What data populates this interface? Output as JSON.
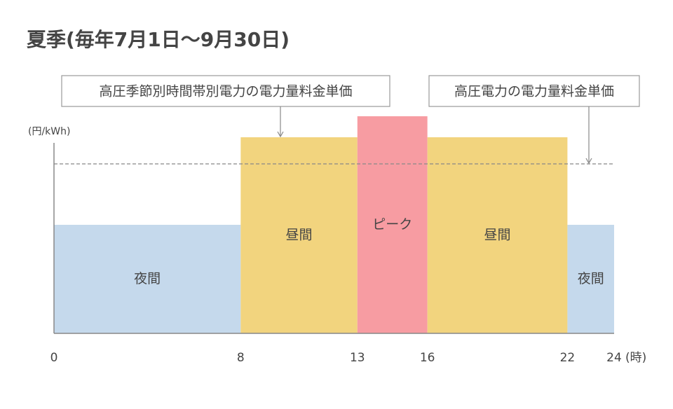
{
  "chart_data": {
    "type": "bar",
    "title": "夏季(毎年7月1日〜9月30日)",
    "ylabel": "(円/kWh)",
    "xlabel": "(時)",
    "bins": [
      0,
      8,
      13,
      16,
      22,
      24
    ],
    "categories": [
      "夜間",
      "昼間",
      "ピーク",
      "昼間",
      "夜間"
    ],
    "values": [
      155,
      280,
      310,
      280,
      155
    ],
    "colors": [
      "#c5d9ec",
      "#f2d47e",
      "#f79ca2",
      "#f2d47e",
      "#c5d9ec"
    ],
    "xlim": [
      0,
      24
    ],
    "xticks": [
      0,
      8,
      13,
      16,
      22,
      24
    ],
    "ylim": [
      0,
      320
    ],
    "annotation": "高圧季節別時間帯別電力の電力量料金単価",
    "reference_line": {
      "value": 242,
      "label": "高圧電力の電力量料金単価"
    }
  }
}
